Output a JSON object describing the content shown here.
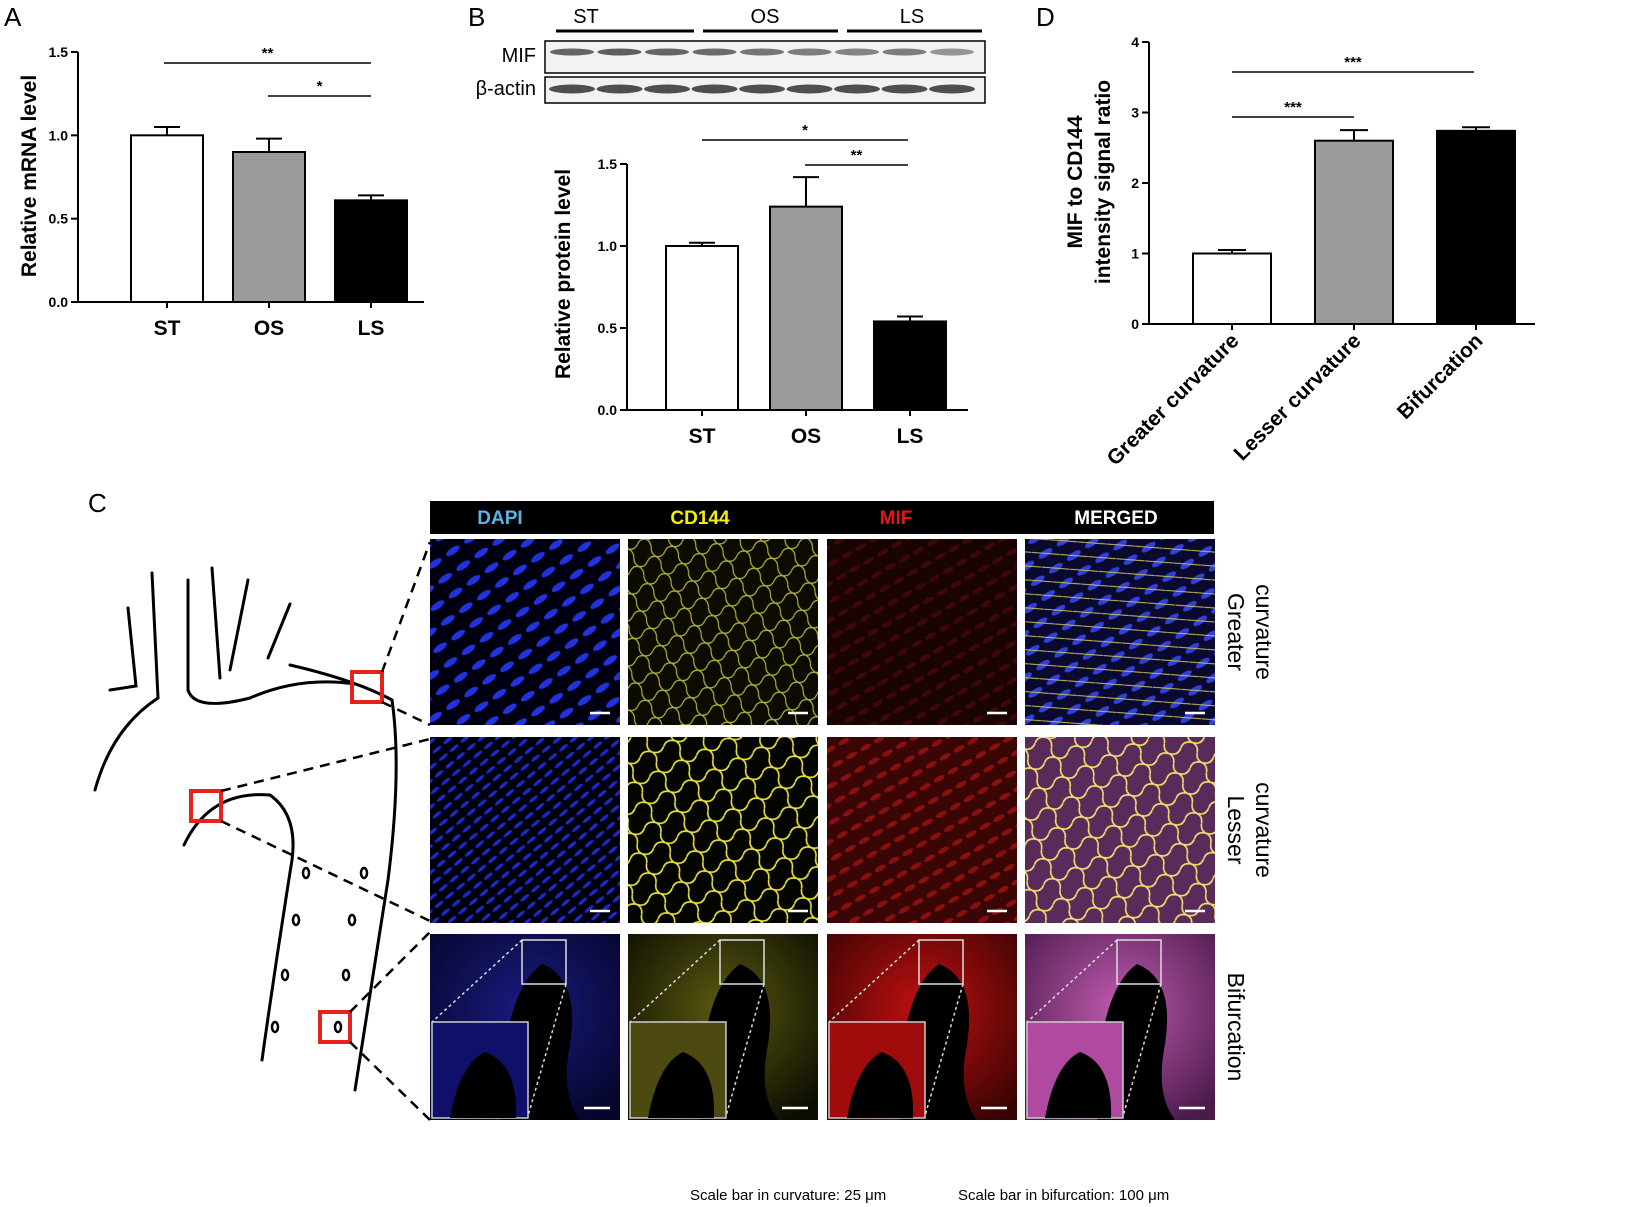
{
  "panels": {
    "a": "A",
    "b": "B",
    "c": "C",
    "d": "D"
  },
  "colors": {
    "st": "#ffffff",
    "os": "#9b9b9b",
    "ls": "#000000",
    "dapi": "#5ab4e6",
    "cd144": "#f2f200",
    "mif": "#e01818",
    "merged": "#ffffff",
    "box": "#e5231b"
  },
  "chart_data": [
    {
      "type": "bar",
      "categories": [
        "ST",
        "OS",
        "LS"
      ],
      "values": [
        1.0,
        0.9,
        0.61
      ],
      "errors": [
        0.05,
        0.08,
        0.03
      ],
      "ylabel": "Relative mRNA level",
      "ylim": [
        0,
        1.5
      ],
      "yticks": [
        "0.0",
        "0.5",
        "1.0",
        "1.5"
      ],
      "significance": [
        {
          "from": "ST",
          "to": "LS",
          "label": "**"
        },
        {
          "from": "OS",
          "to": "LS",
          "label": "*"
        }
      ]
    },
    {
      "type": "bar",
      "categories": [
        "ST",
        "OS",
        "LS"
      ],
      "values": [
        1.0,
        1.24,
        0.54
      ],
      "errors": [
        0.02,
        0.18,
        0.03
      ],
      "ylabel": "Relative protein level",
      "ylim": [
        0,
        1.5
      ],
      "yticks": [
        "0.0",
        "0.5",
        "1.0",
        "1.5"
      ],
      "significance": [
        {
          "from": "ST",
          "to": "LS",
          "label": "*"
        },
        {
          "from": "OS",
          "to": "LS",
          "label": "**"
        }
      ]
    },
    {
      "type": "bar",
      "categories": [
        "Greater curvature",
        "Lesser curvature",
        "Bifurcation"
      ],
      "values": [
        1.0,
        2.6,
        2.74
      ],
      "errors": [
        0.05,
        0.15,
        0.05
      ],
      "ylabel": "MIF to CD144 intensity signal ratio",
      "ylabel_lines": [
        "MIF to CD144",
        "intensity signal ratio"
      ],
      "ylim": [
        0,
        4
      ],
      "yticks": [
        "0",
        "1",
        "2",
        "3",
        "4"
      ],
      "significance": [
        {
          "from": "Greater curvature",
          "to": "Lesser curvature",
          "label": "***"
        },
        {
          "from": "Greater curvature",
          "to": "Bifurcation",
          "label": "***"
        }
      ]
    }
  ],
  "blot": {
    "groups": [
      "ST",
      "OS",
      "LS"
    ],
    "rows": [
      "MIF",
      "β-actin"
    ]
  },
  "micro": {
    "channels": [
      {
        "label": "DAPI",
        "color": "#5ab4e6"
      },
      {
        "label": "CD144",
        "color": "#f2f200"
      },
      {
        "label": "MIF",
        "color": "#e01818"
      },
      {
        "label": "MERGED",
        "color": "#ffffff"
      }
    ],
    "rows": [
      {
        "lines": [
          "Greater",
          "curvature"
        ]
      },
      {
        "lines": [
          "Lesser",
          "curvature"
        ]
      },
      {
        "lines": [
          "Bifurcation"
        ]
      }
    ],
    "scale_curvature": "Scale bar in curvature: 25 μm",
    "scale_bifurcation": "Scale bar in bifurcation: 100 μm"
  }
}
